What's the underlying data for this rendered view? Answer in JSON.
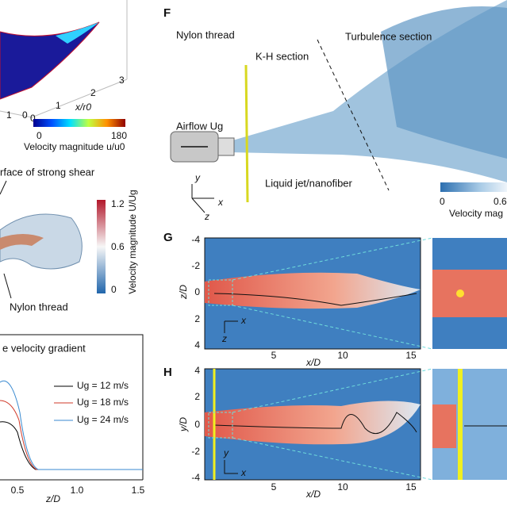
{
  "panel_a": {
    "ticks": [
      "0",
      "1",
      "2",
      "3"
    ],
    "axis_label": "x/r0",
    "side_ticks": [
      "1",
      "0"
    ],
    "colorbar": {
      "ticks": [
        "0",
        "180"
      ],
      "label": "Velocity magnitude u/u0"
    }
  },
  "panel_b": {
    "annotation": "rface of strong shear",
    "thread_label": "Nylon thread",
    "colorbar": {
      "ticks": [
        "1.2",
        "0.6",
        "0"
      ],
      "label": "Velocity magnitude U/Ug"
    }
  },
  "panel_c": {
    "title": "e velocity gradient",
    "legend": [
      "Ug = 12 m/s",
      "Ug = 18 m/s",
      "Ug = 24 m/s"
    ],
    "xticks": [
      "0.5",
      "1.0",
      "1.5"
    ],
    "xlabel": "z/D"
  },
  "panel_f": {
    "letter": "F",
    "labels": {
      "thread": "Nylon thread",
      "kh": "K-H section",
      "turbulence": "Turbulence section",
      "airflow": "Airflow Ug",
      "jet": "Liquid jet/nanofiber"
    },
    "axes": [
      "y",
      "x",
      "z"
    ],
    "colorbar": {
      "ticks": [
        "0",
        "0.6"
      ],
      "label": "Velocity mag"
    }
  },
  "panel_g": {
    "letter": "G",
    "yticks": [
      "-4",
      "-2",
      "0",
      "2",
      "4"
    ],
    "ylabel": "z/D",
    "xticks": [
      "5",
      "10",
      "15"
    ],
    "xlabel": "x/D",
    "axes": [
      "z",
      "x"
    ]
  },
  "panel_h": {
    "letter": "H",
    "yticks": [
      "4",
      "2",
      "0",
      "-2",
      "-4"
    ],
    "ylabel": "y/D",
    "xticks": [
      "5",
      "10",
      "15"
    ],
    "xlabel": "x/D",
    "axes": [
      "y",
      "x"
    ]
  }
}
